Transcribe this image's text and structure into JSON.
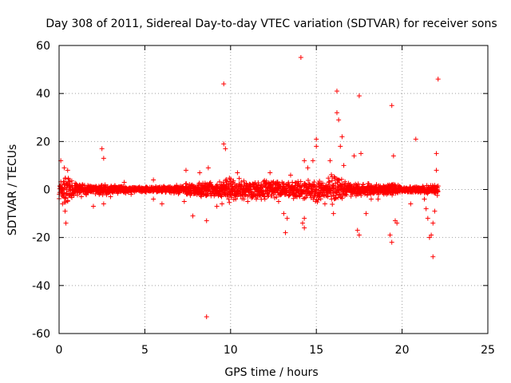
{
  "chart_data": {
    "type": "scatter",
    "title": "Day 308 of 2011, Sidereal Day-to-day VTEC variation (SDTVAR) for receiver sons",
    "xlabel": "GPS time / hours",
    "ylabel": "SDTVAR / TECUs",
    "xlim": [
      0,
      25
    ],
    "ylim": [
      -60,
      60
    ],
    "xticks": [
      "0",
      "5",
      "10",
      "15",
      "20",
      "25"
    ],
    "yticks": [
      "60",
      "40",
      "20",
      "0",
      "-20",
      "-40",
      "-60"
    ],
    "grid": true,
    "marker": "+",
    "color": "#ff0000",
    "series": [
      {
        "name": "SDTVAR",
        "band": [
          [
            0.0,
            4
          ],
          [
            0.4,
            7
          ],
          [
            0.8,
            4
          ],
          [
            1.2,
            2.5
          ],
          [
            2.0,
            2
          ],
          [
            2.6,
            2.5
          ],
          [
            3.0,
            2
          ],
          [
            4.0,
            1.5
          ],
          [
            5.0,
            1.2
          ],
          [
            6.0,
            1.5
          ],
          [
            7.0,
            2
          ],
          [
            7.5,
            3
          ],
          [
            8.0,
            3
          ],
          [
            8.5,
            4
          ],
          [
            9.0,
            3
          ],
          [
            9.5,
            4
          ],
          [
            10.0,
            6
          ],
          [
            10.5,
            5
          ],
          [
            11.0,
            4
          ],
          [
            11.5,
            5
          ],
          [
            12.0,
            5
          ],
          [
            12.5,
            4
          ],
          [
            13.0,
            4
          ],
          [
            13.5,
            3.5
          ],
          [
            14.0,
            5
          ],
          [
            14.5,
            4
          ],
          [
            15.0,
            6
          ],
          [
            15.5,
            3
          ],
          [
            16.0,
            8
          ],
          [
            16.5,
            4
          ],
          [
            17.0,
            3
          ],
          [
            17.5,
            3
          ],
          [
            18.0,
            3
          ],
          [
            18.5,
            2.5
          ],
          [
            19.0,
            2
          ],
          [
            19.5,
            3
          ],
          [
            20.0,
            1.5
          ],
          [
            20.5,
            1.5
          ],
          [
            21.0,
            1.5
          ],
          [
            21.5,
            2
          ],
          [
            22.1,
            2.5
          ]
        ],
        "spikes": [
          [
            0.1,
            12
          ],
          [
            0.2,
            -6
          ],
          [
            0.3,
            9
          ],
          [
            0.35,
            -9
          ],
          [
            0.4,
            -14
          ],
          [
            0.5,
            8
          ],
          [
            1.3,
            -3
          ],
          [
            2.0,
            -7
          ],
          [
            2.5,
            17
          ],
          [
            2.6,
            13
          ],
          [
            2.6,
            -6
          ],
          [
            3.0,
            -3
          ],
          [
            3.8,
            3
          ],
          [
            4.2,
            -2
          ],
          [
            5.5,
            4
          ],
          [
            5.5,
            -4
          ],
          [
            6.0,
            -6
          ],
          [
            7.3,
            -5
          ],
          [
            7.4,
            8
          ],
          [
            7.8,
            -11
          ],
          [
            8.2,
            7
          ],
          [
            8.6,
            -13
          ],
          [
            8.6,
            -53
          ],
          [
            8.7,
            9
          ],
          [
            9.2,
            -7
          ],
          [
            9.5,
            -6
          ],
          [
            9.6,
            44
          ],
          [
            9.6,
            19
          ],
          [
            9.7,
            17
          ],
          [
            10.3,
            -4
          ],
          [
            10.4,
            7
          ],
          [
            11.0,
            -5
          ],
          [
            11.5,
            -4
          ],
          [
            12.0,
            -4
          ],
          [
            12.3,
            7
          ],
          [
            12.5,
            -2
          ],
          [
            12.8,
            -5
          ],
          [
            13.0,
            3
          ],
          [
            13.1,
            -10
          ],
          [
            13.2,
            -18
          ],
          [
            13.3,
            -12
          ],
          [
            13.5,
            6
          ],
          [
            13.6,
            3
          ],
          [
            14.1,
            55
          ],
          [
            14.2,
            -14
          ],
          [
            14.3,
            -16
          ],
          [
            14.3,
            -12
          ],
          [
            14.3,
            12
          ],
          [
            14.5,
            9
          ],
          [
            14.8,
            12
          ],
          [
            15.0,
            18
          ],
          [
            15.0,
            21
          ],
          [
            15.5,
            -6
          ],
          [
            15.8,
            12
          ],
          [
            16.0,
            -10
          ],
          [
            16.2,
            32
          ],
          [
            16.2,
            41
          ],
          [
            16.3,
            29
          ],
          [
            16.4,
            18
          ],
          [
            16.5,
            22
          ],
          [
            16.6,
            10
          ],
          [
            17.1,
            -2
          ],
          [
            17.2,
            14
          ],
          [
            17.4,
            -17
          ],
          [
            17.5,
            -19
          ],
          [
            17.5,
            39
          ],
          [
            17.6,
            15
          ],
          [
            17.9,
            -10
          ],
          [
            18.2,
            -4
          ],
          [
            18.6,
            -4
          ],
          [
            19.1,
            -2
          ],
          [
            19.3,
            -19
          ],
          [
            19.4,
            35
          ],
          [
            19.4,
            -22
          ],
          [
            19.5,
            14
          ],
          [
            19.6,
            -13
          ],
          [
            19.7,
            -14
          ],
          [
            20.5,
            -6
          ],
          [
            20.8,
            21
          ],
          [
            21.3,
            -4
          ],
          [
            21.4,
            -8
          ],
          [
            21.5,
            -12
          ],
          [
            21.6,
            -20
          ],
          [
            21.7,
            -19
          ],
          [
            21.8,
            -28
          ],
          [
            21.8,
            -14
          ],
          [
            21.9,
            -9
          ],
          [
            22.0,
            15
          ],
          [
            22.0,
            8
          ],
          [
            22.1,
            46
          ]
        ]
      }
    ]
  }
}
